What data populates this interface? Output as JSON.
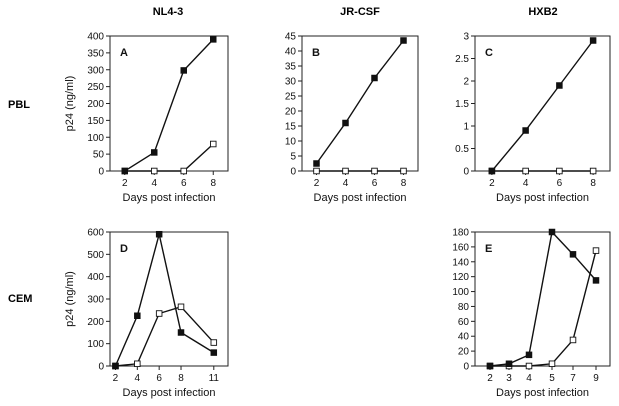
{
  "column_titles": [
    "NL4-3",
    "JR-CSF",
    "HXB2"
  ],
  "row_labels": [
    "PBL",
    "CEM"
  ],
  "chart_data": [
    {
      "type": "line",
      "panel": "A",
      "strain": "NL4-3",
      "cells": "PBL",
      "xlabel": "Days post infection",
      "ylabel": "p24 (ng/ml)",
      "x": [
        2,
        4,
        6,
        8
      ],
      "xticks": [
        "2",
        "4",
        "6",
        "8"
      ],
      "ylim": [
        0,
        400
      ],
      "yticks": [
        "0",
        "50",
        "100",
        "150",
        "200",
        "250",
        "300",
        "350",
        "400"
      ],
      "series": [
        {
          "name": "filled",
          "marker": "filled-square",
          "values": [
            0,
            55,
            298,
            390
          ]
        },
        {
          "name": "open",
          "marker": "open-square",
          "values": [
            0,
            0,
            0,
            80
          ]
        }
      ]
    },
    {
      "type": "line",
      "panel": "B",
      "strain": "JR-CSF",
      "cells": "PBL",
      "xlabel": "Days post infection",
      "ylabel": "",
      "x": [
        2,
        4,
        6,
        8
      ],
      "xticks": [
        "2",
        "4",
        "6",
        "8"
      ],
      "ylim": [
        0,
        45
      ],
      "yticks": [
        "0",
        "5",
        "10",
        "15",
        "20",
        "25",
        "30",
        "35",
        "40",
        "45"
      ],
      "series": [
        {
          "name": "filled",
          "marker": "filled-square",
          "values": [
            2.5,
            16,
            31,
            43.5
          ]
        },
        {
          "name": "open",
          "marker": "open-square",
          "values": [
            0,
            0,
            0,
            0
          ]
        }
      ]
    },
    {
      "type": "line",
      "panel": "C",
      "strain": "HXB2",
      "cells": "PBL",
      "xlabel": "Days post infection",
      "ylabel": "",
      "x": [
        2,
        4,
        6,
        8
      ],
      "xticks": [
        "2",
        "4",
        "6",
        "8"
      ],
      "ylim": [
        0,
        3
      ],
      "yticks": [
        "0",
        "0.5",
        "1",
        "1.5",
        "2",
        "2.5",
        "3"
      ],
      "series": [
        {
          "name": "filled",
          "marker": "filled-square",
          "values": [
            0,
            0.9,
            1.9,
            2.9
          ]
        },
        {
          "name": "open",
          "marker": "open-square",
          "values": [
            0,
            0,
            0,
            0
          ]
        }
      ]
    },
    {
      "type": "line",
      "panel": "D",
      "strain": "NL4-3",
      "cells": "CEM",
      "xlabel": "Days post infection",
      "ylabel": "p24 (ng/ml)",
      "x": [
        2,
        4,
        6,
        8,
        11
      ],
      "xticks": [
        "2",
        "4",
        "6",
        "8",
        "11"
      ],
      "ylim": [
        0,
        600
      ],
      "yticks": [
        "0",
        "100",
        "200",
        "300",
        "400",
        "500",
        "600"
      ],
      "series": [
        {
          "name": "filled",
          "marker": "filled-square",
          "values": [
            0,
            225,
            590,
            150,
            60
          ]
        },
        {
          "name": "open",
          "marker": "open-square",
          "values": [
            0,
            10,
            235,
            265,
            105
          ]
        }
      ]
    },
    {
      "type": "line",
      "panel": "E",
      "strain": "HXB2",
      "cells": "CEM",
      "xlabel": "Days post infection",
      "ylabel": "",
      "x": [
        2,
        3,
        4,
        5,
        7,
        9
      ],
      "xticks": [
        "2",
        "3",
        "4",
        "5",
        "7",
        "9"
      ],
      "ylim": [
        0,
        180
      ],
      "yticks": [
        "0",
        "20",
        "40",
        "60",
        "80",
        "100",
        "120",
        "140",
        "160",
        "180"
      ],
      "series": [
        {
          "name": "filled",
          "marker": "filled-square",
          "values": [
            0,
            3,
            15,
            180,
            150,
            115
          ]
        },
        {
          "name": "open",
          "marker": "open-square",
          "values": [
            0,
            0,
            0,
            3,
            35,
            155
          ]
        }
      ]
    }
  ]
}
